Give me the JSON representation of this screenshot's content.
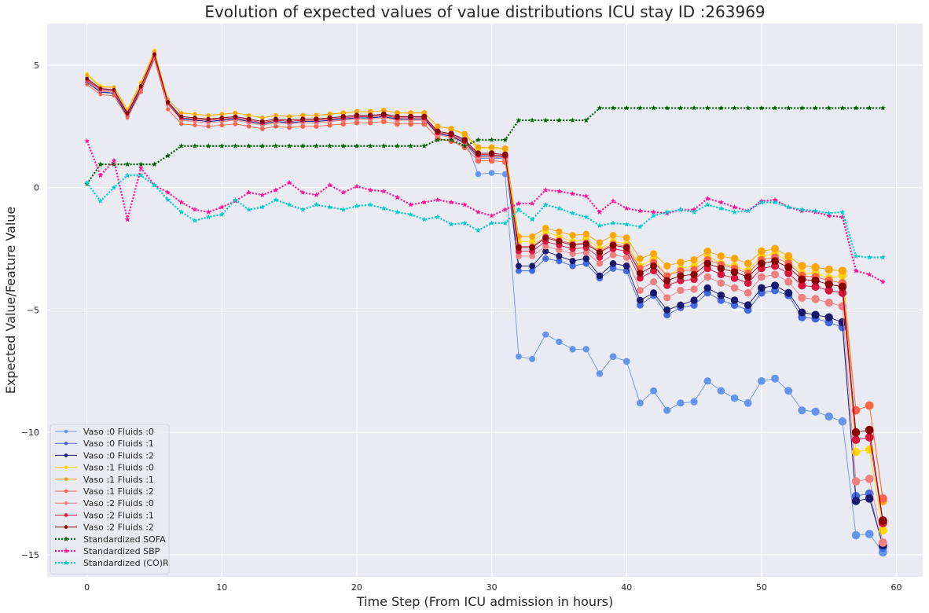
{
  "chart_data": {
    "type": "line",
    "title": "Evolution of expected values of value distributions ICU stay ID :263969",
    "xlabel": "Time Step (From ICU admission in hours)",
    "ylabel": "Expected Value/Feature Value",
    "xlim": [
      -2.95,
      61.95
    ],
    "ylim": [
      -15.9,
      6.7
    ],
    "xticks": [
      0,
      10,
      20,
      30,
      40,
      50,
      60
    ],
    "yticks": [
      5,
      0,
      -5,
      -10,
      -15
    ],
    "grid": true,
    "legend_position": "lower-left",
    "background": "#eaeaf2",
    "series": [
      {
        "name": "Vaso :0 Fluids :0",
        "color": "#6495ed",
        "style": "solid",
        "marker": "circle",
        "values": [
          4.5,
          4.0,
          4.0,
          3.0,
          4.1,
          5.4,
          3.5,
          2.9,
          2.85,
          2.8,
          2.85,
          2.9,
          2.8,
          2.7,
          2.8,
          2.75,
          2.8,
          2.8,
          2.85,
          2.9,
          2.95,
          2.95,
          3.0,
          2.9,
          2.9,
          2.9,
          2.3,
          2.2,
          2.0,
          0.55,
          0.6,
          0.55,
          -6.9,
          -7.0,
          -6.0,
          -6.3,
          -6.6,
          -6.6,
          -7.6,
          -6.9,
          -7.1,
          -8.8,
          -8.3,
          -9.1,
          -8.8,
          -8.75,
          -7.9,
          -8.3,
          -8.6,
          -8.8,
          -7.9,
          -7.8,
          -8.3,
          -9.1,
          -9.15,
          -9.35,
          -9.55,
          -14.2,
          -14.15,
          -14.9
        ]
      },
      {
        "name": "Vaso :0 Fluids :1",
        "color": "#4169e1",
        "style": "solid",
        "marker": "circle",
        "values": [
          4.4,
          3.9,
          3.9,
          2.95,
          4.0,
          5.35,
          3.4,
          2.8,
          2.75,
          2.7,
          2.75,
          2.8,
          2.7,
          2.6,
          2.7,
          2.65,
          2.7,
          2.7,
          2.75,
          2.8,
          2.85,
          2.85,
          2.9,
          2.8,
          2.8,
          2.8,
          2.2,
          2.1,
          1.8,
          1.2,
          1.2,
          1.2,
          -3.4,
          -3.4,
          -2.9,
          -3.0,
          -3.2,
          -3.1,
          -3.7,
          -3.3,
          -3.4,
          -4.8,
          -4.4,
          -5.2,
          -4.9,
          -4.8,
          -4.3,
          -4.6,
          -4.8,
          -5.0,
          -4.3,
          -4.2,
          -4.4,
          -5.3,
          -5.35,
          -5.5,
          -5.7,
          -12.6,
          -12.5,
          -14.7
        ]
      },
      {
        "name": "Vaso :0 Fluids :2",
        "color": "#191970",
        "style": "solid",
        "marker": "circle",
        "values": [
          4.3,
          3.9,
          3.85,
          2.9,
          4.0,
          5.3,
          3.4,
          2.8,
          2.75,
          2.7,
          2.75,
          2.8,
          2.7,
          2.6,
          2.7,
          2.65,
          2.7,
          2.7,
          2.75,
          2.8,
          2.85,
          2.85,
          2.9,
          2.8,
          2.8,
          2.8,
          2.2,
          2.1,
          1.85,
          1.3,
          1.3,
          1.25,
          -3.2,
          -3.2,
          -2.6,
          -2.8,
          -3.0,
          -2.9,
          -3.6,
          -3.1,
          -3.2,
          -4.6,
          -4.3,
          -5.0,
          -4.8,
          -4.6,
          -4.1,
          -4.4,
          -4.6,
          -4.8,
          -4.1,
          -4.0,
          -4.3,
          -5.1,
          -5.2,
          -5.3,
          -5.5,
          -12.8,
          -12.7,
          -14.6
        ]
      },
      {
        "name": "Vaso :1 Fluids :0",
        "color": "#ffd700",
        "style": "solid",
        "marker": "circle",
        "values": [
          4.65,
          4.15,
          4.1,
          3.2,
          4.3,
          5.6,
          3.6,
          3.05,
          3.0,
          2.95,
          3.0,
          3.05,
          2.95,
          2.85,
          2.95,
          2.9,
          2.95,
          2.95,
          3.0,
          3.05,
          3.1,
          3.1,
          3.15,
          3.05,
          3.05,
          3.05,
          2.5,
          2.4,
          2.15,
          1.6,
          1.6,
          1.55,
          -2.2,
          -2.2,
          -1.8,
          -2.0,
          -2.2,
          -2.1,
          -2.5,
          -2.2,
          -2.3,
          -3.2,
          -2.9,
          -3.6,
          -3.3,
          -3.2,
          -2.8,
          -3.1,
          -3.2,
          -3.4,
          -2.8,
          -2.7,
          -3.0,
          -3.5,
          -3.5,
          -3.7,
          -3.6,
          -10.8,
          -10.7,
          -14.0
        ]
      },
      {
        "name": "Vaso :1 Fluids :1",
        "color": "#ffa500",
        "style": "solid",
        "marker": "circle",
        "values": [
          4.6,
          4.1,
          4.1,
          3.15,
          4.25,
          5.55,
          3.6,
          3.05,
          3.0,
          2.95,
          3.0,
          3.05,
          2.95,
          2.85,
          2.95,
          2.9,
          2.95,
          2.95,
          3.0,
          3.05,
          3.1,
          3.1,
          3.15,
          3.05,
          3.05,
          3.05,
          2.5,
          2.4,
          2.2,
          1.65,
          1.65,
          1.6,
          -2.0,
          -2.0,
          -1.65,
          -1.8,
          -1.95,
          -1.9,
          -2.25,
          -1.95,
          -2.05,
          -2.9,
          -2.7,
          -3.2,
          -3.05,
          -2.95,
          -2.6,
          -2.8,
          -2.9,
          -3.1,
          -2.6,
          -2.5,
          -2.8,
          -3.2,
          -3.25,
          -3.35,
          -3.4,
          -9.1,
          -8.9,
          -12.8
        ]
      },
      {
        "name": "Vaso :1 Fluids :2",
        "color": "#ff6347",
        "style": "solid",
        "marker": "circle",
        "values": [
          4.2,
          3.8,
          3.75,
          2.85,
          3.9,
          5.25,
          3.2,
          2.6,
          2.55,
          2.5,
          2.55,
          2.6,
          2.5,
          2.4,
          2.5,
          2.45,
          2.5,
          2.5,
          2.55,
          2.6,
          2.65,
          2.65,
          2.7,
          2.6,
          2.6,
          2.6,
          2.0,
          1.9,
          1.65,
          1.1,
          1.1,
          1.05,
          -2.4,
          -2.4,
          -2.0,
          -2.15,
          -2.3,
          -2.25,
          -2.6,
          -2.3,
          -2.4,
          -3.3,
          -3.05,
          -3.6,
          -3.4,
          -3.35,
          -2.95,
          -3.15,
          -3.3,
          -3.5,
          -2.95,
          -2.85,
          -3.1,
          -3.6,
          -3.65,
          -3.8,
          -3.9,
          -9.1,
          -8.9,
          -12.7
        ]
      },
      {
        "name": "Vaso :2 Fluids :0",
        "color": "#f08080",
        "style": "solid",
        "marker": "circle",
        "values": [
          4.35,
          3.95,
          3.9,
          3.0,
          4.05,
          5.35,
          3.4,
          2.75,
          2.7,
          2.65,
          2.7,
          2.75,
          2.65,
          2.55,
          2.65,
          2.6,
          2.65,
          2.65,
          2.7,
          2.75,
          2.8,
          2.8,
          2.85,
          2.75,
          2.75,
          2.75,
          2.15,
          2.05,
          1.8,
          1.25,
          1.25,
          1.2,
          -2.8,
          -2.8,
          -2.4,
          -2.55,
          -2.7,
          -2.65,
          -3.1,
          -2.75,
          -2.85,
          -4.2,
          -3.85,
          -4.5,
          -4.2,
          -4.15,
          -3.65,
          -3.9,
          -4.1,
          -4.3,
          -3.65,
          -3.55,
          -3.85,
          -4.5,
          -4.55,
          -4.7,
          -4.85,
          -12.0,
          -11.9,
          -14.5
        ]
      },
      {
        "name": "Vaso :2 Fluids :1",
        "color": "#dc143c",
        "style": "solid",
        "marker": "circle",
        "values": [
          4.4,
          4.0,
          3.95,
          3.0,
          4.1,
          5.4,
          3.45,
          2.85,
          2.8,
          2.75,
          2.8,
          2.85,
          2.75,
          2.65,
          2.75,
          2.7,
          2.75,
          2.75,
          2.8,
          2.85,
          2.9,
          2.9,
          2.95,
          2.85,
          2.85,
          2.85,
          2.25,
          2.15,
          1.9,
          1.35,
          1.35,
          1.3,
          -2.6,
          -2.6,
          -2.2,
          -2.35,
          -2.5,
          -2.45,
          -2.85,
          -2.5,
          -2.6,
          -3.7,
          -3.4,
          -4.0,
          -3.8,
          -3.75,
          -3.3,
          -3.55,
          -3.7,
          -3.9,
          -3.3,
          -3.2,
          -3.5,
          -4.0,
          -4.05,
          -4.2,
          -4.3,
          -10.3,
          -10.2,
          -13.7
        ]
      },
      {
        "name": "Vaso :2 Fluids :2",
        "color": "#8b0000",
        "style": "solid",
        "marker": "circle",
        "values": [
          4.45,
          4.05,
          4.0,
          3.05,
          4.15,
          5.45,
          3.5,
          2.9,
          2.85,
          2.8,
          2.85,
          2.9,
          2.8,
          2.7,
          2.8,
          2.75,
          2.8,
          2.8,
          2.85,
          2.9,
          2.95,
          2.95,
          3.0,
          2.9,
          2.9,
          2.9,
          2.3,
          2.2,
          1.95,
          1.4,
          1.4,
          1.35,
          -2.45,
          -2.45,
          -2.05,
          -2.2,
          -2.35,
          -2.3,
          -2.65,
          -2.35,
          -2.45,
          -3.5,
          -3.2,
          -3.8,
          -3.6,
          -3.55,
          -3.1,
          -3.3,
          -3.45,
          -3.65,
          -3.1,
          -3.0,
          -3.25,
          -3.75,
          -3.8,
          -3.95,
          -4.05,
          -10.0,
          -9.9,
          -13.6
        ]
      },
      {
        "name": "Standardized SOFA",
        "color": "#006400",
        "style": "dotted",
        "marker": "star",
        "values": [
          0.15,
          0.95,
          0.95,
          0.95,
          0.95,
          0.95,
          1.3,
          1.7,
          1.7,
          1.7,
          1.7,
          1.7,
          1.7,
          1.7,
          1.7,
          1.7,
          1.7,
          1.7,
          1.7,
          1.7,
          1.7,
          1.7,
          1.7,
          1.7,
          1.7,
          1.7,
          1.95,
          1.95,
          1.7,
          1.95,
          1.95,
          1.95,
          2.75,
          2.75,
          2.75,
          2.75,
          2.75,
          2.75,
          3.25,
          3.25,
          3.25,
          3.25,
          3.25,
          3.25,
          3.25,
          3.25,
          3.25,
          3.25,
          3.25,
          3.25,
          3.25,
          3.25,
          3.25,
          3.25,
          3.25,
          3.25,
          3.25,
          3.25,
          3.25,
          3.25
        ]
      },
      {
        "name": "Standardized SBP",
        "color": "#ff1493",
        "style": "dotted",
        "marker": "star",
        "values": [
          1.9,
          0.5,
          1.1,
          -1.3,
          0.8,
          0.1,
          -0.2,
          -0.6,
          -0.9,
          -1.0,
          -0.8,
          -0.55,
          -0.2,
          -0.3,
          -0.1,
          0.2,
          -0.2,
          -0.3,
          0.1,
          -0.2,
          0.05,
          -0.1,
          -0.15,
          -0.4,
          -0.7,
          -0.6,
          -0.5,
          -0.6,
          -0.7,
          -1.0,
          -1.15,
          -0.9,
          -0.65,
          -0.65,
          -0.1,
          -0.15,
          -0.25,
          -0.35,
          -1.0,
          -0.55,
          -0.85,
          -0.95,
          -1.0,
          -1.05,
          -0.9,
          -0.9,
          -0.45,
          -0.6,
          -0.8,
          -0.95,
          -0.55,
          -0.5,
          -0.8,
          -0.95,
          -1.0,
          -1.15,
          -1.2,
          -3.4,
          -3.55,
          -3.85
        ]
      },
      {
        "name": "Standardized (CO)R",
        "color": "#00ced1",
        "style": "dotted",
        "marker": "star",
        "values": [
          0.2,
          -0.55,
          0.0,
          0.5,
          0.5,
          0.1,
          -0.5,
          -1.0,
          -1.35,
          -1.2,
          -1.1,
          -0.5,
          -0.9,
          -0.8,
          -0.5,
          -0.7,
          -0.9,
          -0.7,
          -0.8,
          -0.9,
          -0.75,
          -0.7,
          -0.85,
          -1.0,
          -1.1,
          -1.3,
          -1.2,
          -1.5,
          -1.45,
          -1.75,
          -1.45,
          -1.45,
          -0.9,
          -1.3,
          -0.7,
          -0.85,
          -1.05,
          -1.2,
          -1.55,
          -1.45,
          -1.5,
          -1.6,
          -1.15,
          -1.0,
          -0.9,
          -1.0,
          -0.7,
          -0.85,
          -1.0,
          -0.95,
          -0.6,
          -0.6,
          -0.8,
          -0.9,
          -0.95,
          -1.05,
          -1.0,
          -2.8,
          -2.85,
          -2.85
        ]
      }
    ]
  }
}
